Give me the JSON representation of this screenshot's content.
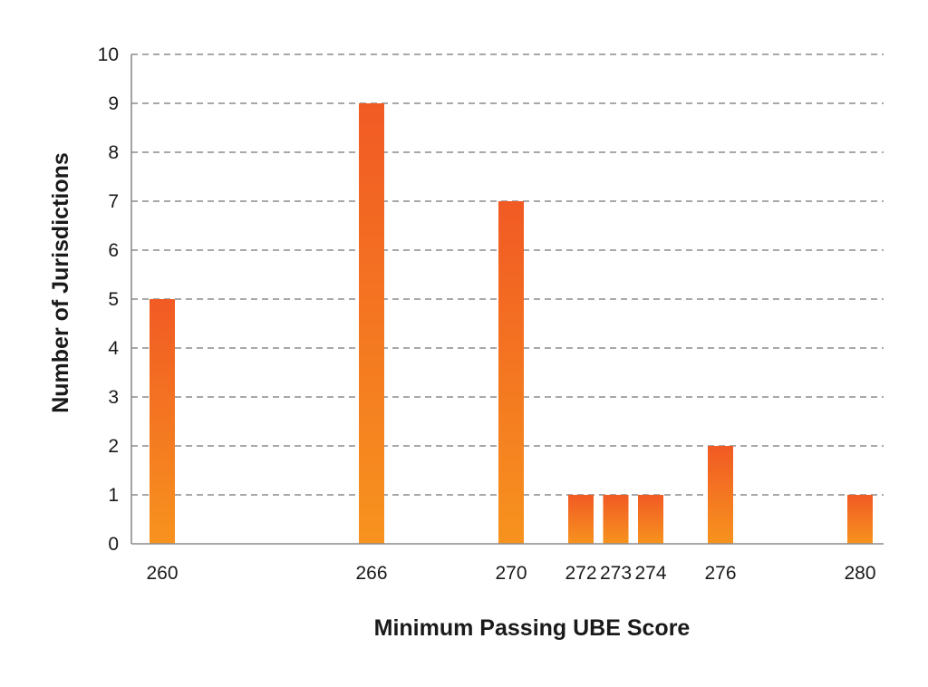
{
  "chart_data": {
    "type": "bar",
    "x": [
      260,
      266,
      270,
      272,
      273,
      274,
      276,
      280
    ],
    "values": [
      5,
      9,
      7,
      1,
      1,
      1,
      2,
      1
    ],
    "xlabel": "Minimum Passing UBE Score",
    "ylabel": "Number of Jurisdictions",
    "xlim": [
      259,
      281
    ],
    "ylim": [
      0,
      10
    ],
    "yticks": [
      0,
      1,
      2,
      3,
      4,
      5,
      6,
      7,
      8,
      9,
      10
    ],
    "xticks": [
      260,
      266,
      270,
      272,
      273,
      274,
      276,
      280
    ],
    "grid": true,
    "bar_colors": {
      "top": "#f15a24",
      "bottom": "#f7931e"
    }
  }
}
